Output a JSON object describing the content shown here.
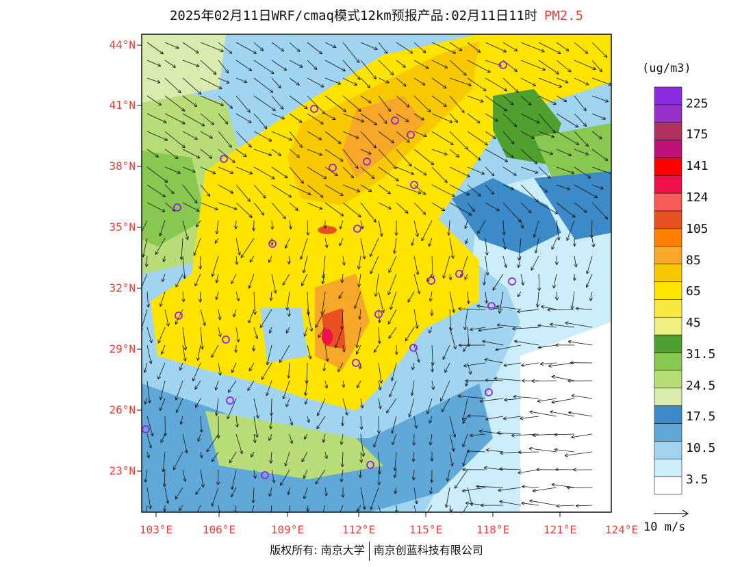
{
  "title": {
    "main": "2025年02月11日WRF/cmaq模式12km预报产品:02月11日11时",
    "species": "PM2.5"
  },
  "latitude_labels": [
    "44°N",
    "41°N",
    "38°N",
    "35°N",
    "32°N",
    "29°N",
    "26°N",
    "23°N"
  ],
  "longitude_labels": [
    "103°E",
    "106°E",
    "109°E",
    "112°E",
    "115°E",
    "118°E",
    "121°E",
    "124°E"
  ],
  "colorbar": {
    "unit": "(ug/m3)",
    "levels": [
      "225",
      "175",
      "141",
      "124",
      "105",
      "85",
      "65",
      "45",
      "31.5",
      "24.5",
      "17.5",
      "10.5",
      "3.5"
    ],
    "colors": [
      "#8a2be2",
      "#9a30cc",
      "#b03060",
      "#c0107a",
      "#ff0000",
      "#f0104a",
      "#f85a5a",
      "#e85020",
      "#ff8000",
      "#f8a828",
      "#f8c800",
      "#ffe400",
      "#f8e840",
      "#f0f080",
      "#50a030",
      "#88c850",
      "#b8dc78",
      "#d8ecb0",
      "#3c8ac8",
      "#60a8d8",
      "#a0d4f0",
      "#cceefa",
      "#ffffff"
    ]
  },
  "vector_legend": {
    "label": "10 m/s"
  },
  "footer": {
    "left": "版权所有: 南京大学",
    "right": "南京创蓝科技有限公司"
  }
}
